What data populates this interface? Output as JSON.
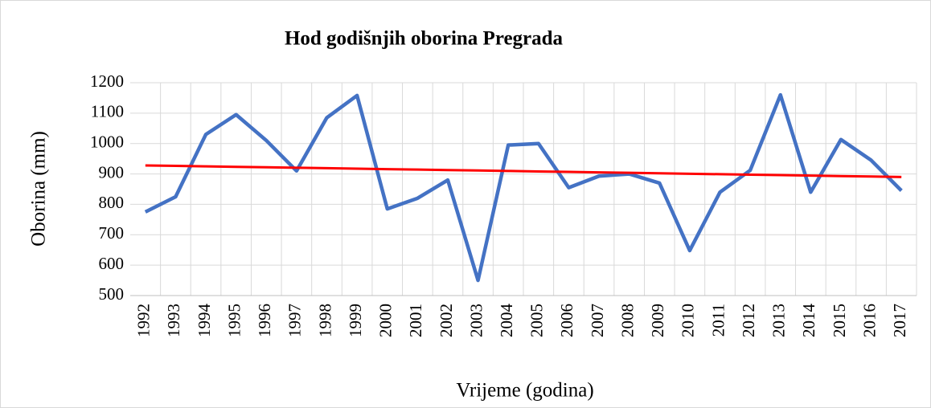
{
  "chart_data": {
    "type": "line",
    "title": "Hod godišnjih oborina Pregrada",
    "x_label": "Vrijeme (godina)",
    "y_label": "Oborina (mm)",
    "categories": [
      "1992",
      "1993",
      "1994",
      "1995",
      "1996",
      "1997",
      "1998",
      "1999",
      "2000",
      "2001",
      "2002",
      "2003",
      "2004",
      "2005",
      "2006",
      "2007",
      "2008",
      "2009",
      "2010",
      "2011",
      "2012",
      "2013",
      "2014",
      "2015",
      "2016",
      "2017"
    ],
    "series": [
      {
        "color": "#4472c4",
        "values": [
          775,
          825,
          1030,
          1095,
          1010,
          910,
          1085,
          1158,
          785,
          820,
          880,
          550,
          995,
          1000,
          855,
          893,
          900,
          870,
          648,
          840,
          912,
          1160,
          840,
          1013,
          945,
          845
        ]
      },
      {
        "color": "#ff0000",
        "values": [
          928,
          926.48,
          924.96,
          923.44,
          921.92,
          920.4,
          918.88,
          917.36,
          915.84,
          914.32,
          912.8,
          911.28,
          909.76,
          908.24,
          906.72,
          905.2,
          903.68,
          902.16,
          900.64,
          899.12,
          897.6,
          896.08,
          894.56,
          893.04,
          891.52,
          890
        ]
      }
    ],
    "ylim": [
      500,
      1200
    ],
    "yticks": [
      500,
      600,
      700,
      800,
      900,
      1000,
      1100,
      1200
    ],
    "grid": true
  }
}
